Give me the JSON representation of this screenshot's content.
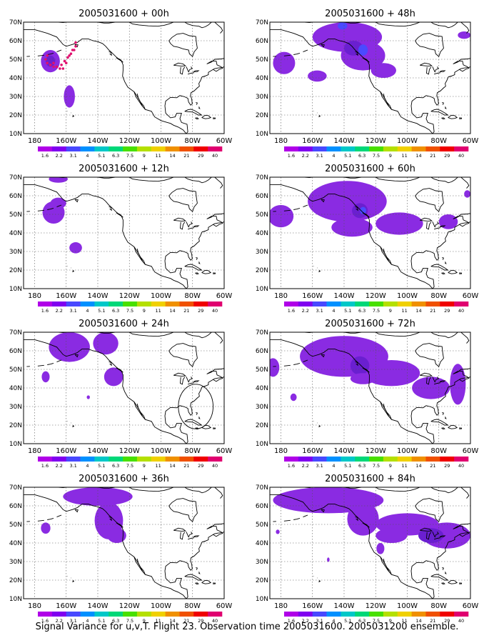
{
  "caption": "Signal Variance for u,v,T. Flight 23. Observation time 2005031600. 2005031200 ensemble.",
  "axes": {
    "lat_labels": [
      "70N",
      "60N",
      "50N",
      "40N",
      "30N",
      "20N",
      "10N"
    ],
    "lat_values": [
      70,
      60,
      50,
      40,
      30,
      20,
      10
    ],
    "lon_labels": [
      "180",
      "160W",
      "140W",
      "120W",
      "100W",
      "80W",
      "60W"
    ],
    "lon_values": [
      180,
      160,
      140,
      120,
      100,
      80,
      60
    ],
    "lon_range_w": [
      187,
      60
    ],
    "lat_range": [
      10,
      70
    ]
  },
  "colorbar": {
    "labels": [
      "1.6",
      "2.2",
      "3.1",
      "4",
      "5.1",
      "6.3",
      "7.5",
      "9",
      "11",
      "14",
      "21",
      "29",
      "40"
    ],
    "colors": [
      "#b000e8",
      "#8000f0",
      "#4848ff",
      "#0090ff",
      "#00c8c8",
      "#00d878",
      "#48e000",
      "#b4e000",
      "#f0d000",
      "#f09000",
      "#f05000",
      "#f00000",
      "#e00070"
    ]
  },
  "colors": {
    "variance_fill": "#8a2be2",
    "variance_core": "#6a1fd0",
    "variance_deep": "#4a4aff",
    "coast": "#000000",
    "grid": "#555555",
    "track": "#e0106f"
  },
  "panels": [
    {
      "title": "2005031600 + 00h",
      "blobs": [
        {
          "lon": 170,
          "lat": 49,
          "rlon": 6,
          "rlat": 6,
          "level": 1
        },
        {
          "lon": 170,
          "lat": 49,
          "rlon": 3,
          "rlat": 3,
          "level": 2
        },
        {
          "lon": 158,
          "lat": 30,
          "rlon": 3.5,
          "rlat": 6,
          "level": 1
        }
      ],
      "track_points": [
        [
          172,
          52
        ],
        [
          173,
          50
        ],
        [
          172,
          48
        ],
        [
          170,
          47
        ],
        [
          168,
          46
        ],
        [
          166,
          46
        ],
        [
          163,
          47
        ],
        [
          161,
          49
        ],
        [
          159,
          51
        ],
        [
          157,
          53
        ],
        [
          155,
          55
        ],
        [
          154,
          57
        ],
        [
          154,
          59
        ],
        [
          156,
          55
        ],
        [
          158,
          52
        ],
        [
          160,
          48
        ],
        [
          162,
          45
        ],
        [
          164,
          45
        ],
        [
          166,
          46
        ],
        [
          168,
          48
        ]
      ],
      "circle": null
    },
    {
      "title": "2005031600 + 12h",
      "blobs": [
        {
          "lon": 168,
          "lat": 51,
          "rlon": 7,
          "rlat": 6,
          "level": 1
        },
        {
          "lon": 165,
          "lat": 56,
          "rlon": 5,
          "rlat": 3,
          "level": 1
        },
        {
          "lon": 165,
          "lat": 69,
          "rlon": 6,
          "rlat": 2,
          "level": 1
        },
        {
          "lon": 154,
          "lat": 32,
          "rlon": 4,
          "rlat": 3,
          "level": 1
        }
      ],
      "track_points": [],
      "circle": null
    },
    {
      "title": "2005031600 + 24h",
      "blobs": [
        {
          "lon": 158,
          "lat": 62,
          "rlon": 13,
          "rlat": 8,
          "level": 1
        },
        {
          "lon": 135,
          "lat": 64,
          "rlon": 8,
          "rlat": 6,
          "level": 1
        },
        {
          "lon": 130,
          "lat": 46,
          "rlon": 6,
          "rlat": 5,
          "level": 1
        },
        {
          "lon": 173,
          "lat": 46,
          "rlon": 2.5,
          "rlat": 3,
          "level": 1
        },
        {
          "lon": 146,
          "lat": 35,
          "rlon": 1,
          "rlat": 1,
          "level": 1
        }
      ],
      "track_points": [],
      "circle": {
        "lon": 78,
        "lat": 30,
        "rlon": 11,
        "rlat": 12
      }
    },
    {
      "title": "2005031600 + 36h",
      "blobs": [
        {
          "lon": 140,
          "lat": 65,
          "rlon": 22,
          "rlat": 5,
          "level": 1
        },
        {
          "lon": 133,
          "lat": 52,
          "rlon": 9,
          "rlat": 10,
          "level": 1
        },
        {
          "lon": 128,
          "lat": 44,
          "rlon": 6,
          "rlat": 4,
          "level": 1
        },
        {
          "lon": 173,
          "lat": 48,
          "rlon": 3,
          "rlat": 3,
          "level": 1
        }
      ],
      "track_points": [],
      "circle": null
    },
    {
      "title": "2005031600 + 48h",
      "blobs": [
        {
          "lon": 138,
          "lat": 62,
          "rlon": 22,
          "rlat": 8,
          "level": 1
        },
        {
          "lon": 128,
          "lat": 52,
          "rlon": 14,
          "rlat": 8,
          "level": 1
        },
        {
          "lon": 115,
          "lat": 44,
          "rlon": 8,
          "rlat": 4,
          "level": 1
        },
        {
          "lon": 134,
          "lat": 56,
          "rlon": 6,
          "rlat": 4,
          "level": 2
        },
        {
          "lon": 128,
          "lat": 55,
          "rlon": 3,
          "rlat": 3,
          "level": 3
        },
        {
          "lon": 141,
          "lat": 68,
          "rlon": 3,
          "rlat": 2,
          "level": 3
        },
        {
          "lon": 178,
          "lat": 48,
          "rlon": 7,
          "rlat": 6,
          "level": 1
        },
        {
          "lon": 157,
          "lat": 41,
          "rlon": 6,
          "rlat": 3,
          "level": 1
        },
        {
          "lon": 64,
          "lat": 63,
          "rlon": 4,
          "rlat": 2,
          "level": 1
        }
      ],
      "track_points": [],
      "circle": null
    },
    {
      "title": "2005031600 + 60h",
      "blobs": [
        {
          "lon": 138,
          "lat": 57,
          "rlon": 25,
          "rlat": 11,
          "level": 1
        },
        {
          "lon": 135,
          "lat": 43,
          "rlon": 13,
          "rlat": 5,
          "level": 1
        },
        {
          "lon": 105,
          "lat": 45,
          "rlon": 15,
          "rlat": 6,
          "level": 1
        },
        {
          "lon": 130,
          "lat": 52,
          "rlon": 5,
          "rlat": 4,
          "level": 2
        },
        {
          "lon": 128,
          "lat": 52,
          "rlon": 2,
          "rlat": 2,
          "level": 3
        },
        {
          "lon": 180,
          "lat": 49,
          "rlon": 8,
          "rlat": 6,
          "level": 1
        },
        {
          "lon": 74,
          "lat": 46,
          "rlon": 6,
          "rlat": 4,
          "level": 1
        },
        {
          "lon": 62,
          "lat": 61,
          "rlon": 2,
          "rlat": 2,
          "level": 1
        }
      ],
      "track_points": [],
      "circle": null
    },
    {
      "title": "2005031600 + 72h",
      "blobs": [
        {
          "lon": 140,
          "lat": 57,
          "rlon": 28,
          "rlat": 11,
          "level": 1
        },
        {
          "lon": 110,
          "lat": 48,
          "rlon": 18,
          "rlat": 7,
          "level": 1
        },
        {
          "lon": 85,
          "lat": 40,
          "rlon": 12,
          "rlat": 6,
          "level": 1
        },
        {
          "lon": 68,
          "lat": 42,
          "rlon": 5,
          "rlat": 11,
          "level": 1
        },
        {
          "lon": 130,
          "lat": 52,
          "rlon": 6,
          "rlat": 5,
          "level": 2
        },
        {
          "lon": 128,
          "lat": 45,
          "rlon": 8,
          "rlat": 3,
          "level": 1
        },
        {
          "lon": 185,
          "lat": 51,
          "rlon": 4,
          "rlat": 5,
          "level": 1
        },
        {
          "lon": 172,
          "lat": 35,
          "rlon": 2,
          "rlat": 2,
          "level": 1
        }
      ],
      "track_points": [],
      "circle": null
    },
    {
      "title": "2005031600 + 84h",
      "blobs": [
        {
          "lon": 150,
          "lat": 63,
          "rlon": 35,
          "rlat": 7,
          "level": 1
        },
        {
          "lon": 128,
          "lat": 53,
          "rlon": 10,
          "rlat": 9,
          "level": 1
        },
        {
          "lon": 100,
          "lat": 50,
          "rlon": 20,
          "rlat": 6,
          "level": 1
        },
        {
          "lon": 75,
          "lat": 44,
          "rlon": 15,
          "rlat": 7,
          "level": 1
        },
        {
          "lon": 110,
          "lat": 44,
          "rlon": 10,
          "rlat": 4,
          "level": 1
        },
        {
          "lon": 85,
          "lat": 44,
          "rlon": 8,
          "rlat": 4,
          "level": 2
        },
        {
          "lon": 117,
          "lat": 37,
          "rlon": 2.5,
          "rlat": 3,
          "level": 1
        },
        {
          "lon": 182,
          "lat": 46,
          "rlon": 1.2,
          "rlat": 1.2,
          "level": 1
        },
        {
          "lon": 150,
          "lat": 31,
          "rlon": 0.8,
          "rlat": 1.2,
          "level": 1
        }
      ],
      "track_points": [],
      "circle": null
    }
  ]
}
